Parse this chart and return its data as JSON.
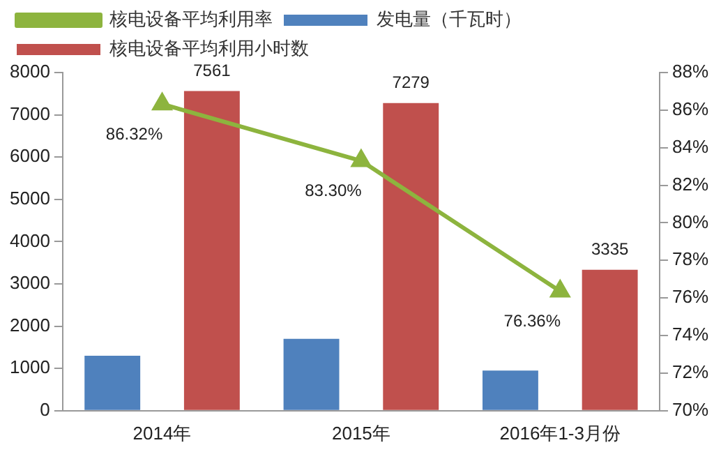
{
  "chart_data": {
    "type": "bar",
    "categories": [
      "2014年",
      "2015年",
      "2016年1-3月份"
    ],
    "series": [
      {
        "name": "发电量（千瓦时）",
        "color": "#4f81bd",
        "values": [
          1300,
          1700,
          950
        ]
      },
      {
        "name": "核电设备平均利用小时数",
        "color": "#c0504d",
        "values": [
          7561,
          7279,
          3335
        ],
        "value_labels": [
          "7561",
          "7279",
          "3335"
        ]
      },
      {
        "name": "核电设备平均利用率",
        "type": "line",
        "axis": "y2",
        "color": "#8db43e",
        "marker": "triangle",
        "values": [
          86.32,
          83.3,
          76.36
        ],
        "value_labels": [
          "86.32%",
          "83.30%",
          "76.36%"
        ]
      }
    ],
    "ylim": [
      0,
      8000
    ],
    "yticks": [
      0,
      1000,
      2000,
      3000,
      4000,
      5000,
      6000,
      7000,
      8000
    ],
    "y2lim": [
      70,
      88
    ],
    "y2ticks": [
      {
        "value": 70,
        "label": "70%"
      },
      {
        "value": 72,
        "label": "72%"
      },
      {
        "value": 74,
        "label": "74%"
      },
      {
        "value": 76,
        "label": "76%"
      },
      {
        "value": 78,
        "label": "78%"
      },
      {
        "value": 80,
        "label": "80%"
      },
      {
        "value": 82,
        "label": "82%"
      },
      {
        "value": 84,
        "label": "84%"
      },
      {
        "value": 86,
        "label": "86%"
      },
      {
        "value": 88,
        "label": "88%"
      }
    ],
    "grid": false,
    "legend": "top"
  }
}
